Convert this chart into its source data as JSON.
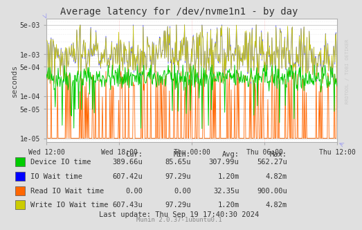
{
  "title": "Average latency for /dev/nvme1n1 - by day",
  "ylabel": "seconds",
  "bg_color": "#e0e0e0",
  "plot_bg_color": "#ffffff",
  "grid_color_minor": "#dddddd",
  "grid_color_major": "#ffaaaa",
  "x_tick_labels": [
    "Wed 12:00",
    "Wed 18:00",
    "Thu 00:00",
    "Thu 06:00",
    "Thu 12:00"
  ],
  "y_ticks": [
    1e-05,
    5e-05,
    0.0001,
    0.0005,
    0.001,
    0.005
  ],
  "y_tick_labels": [
    "1e-05",
    "5e-05",
    "1e-04",
    "5e-04",
    "1e-03",
    "5e-03"
  ],
  "ylim_min": 8e-06,
  "ylim_max": 0.007,
  "legend_entries": [
    {
      "label": "Device IO time",
      "color": "#00cc00"
    },
    {
      "label": "IO Wait time",
      "color": "#0000ff"
    },
    {
      "label": "Read IO Wait time",
      "color": "#ff6600"
    },
    {
      "label": "Write IO Wait time",
      "color": "#cccc00"
    }
  ],
  "legend_stats": {
    "headers": [
      "Cur:",
      "Min:",
      "Avg:",
      "Max:"
    ],
    "rows": [
      [
        "389.66u",
        "85.65u",
        "307.99u",
        "562.27u"
      ],
      [
        "607.42u",
        "97.29u",
        "1.20m",
        "4.82m"
      ],
      [
        "0.00",
        "0.00",
        "32.35u",
        "900.00u"
      ],
      [
        "607.43u",
        "97.29u",
        "1.20m",
        "4.82m"
      ]
    ]
  },
  "footer": "Last update: Thu Sep 19 17:40:30 2024",
  "munin_version": "Munin 2.0.37-1ubuntu0.1",
  "watermark": "RRDTOOL / TOBI OETIKER",
  "n_points": 500,
  "seed": 42
}
